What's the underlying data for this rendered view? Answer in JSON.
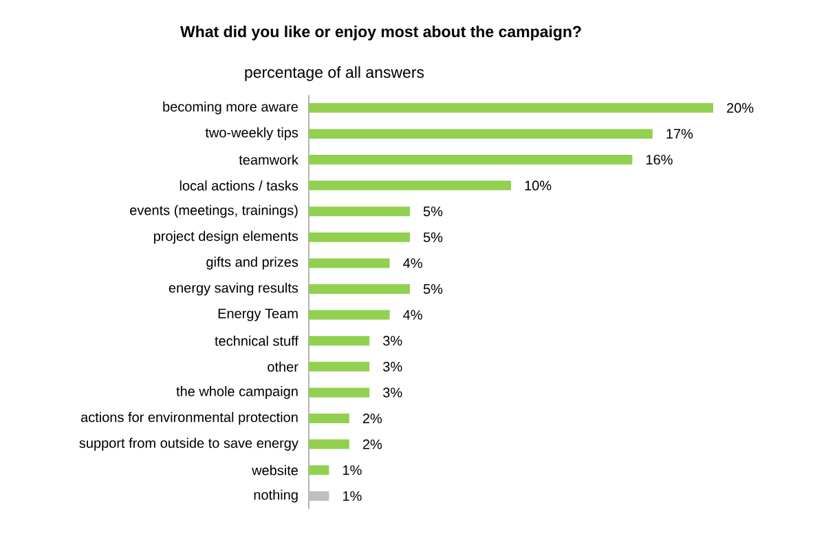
{
  "chart_data": {
    "type": "bar",
    "orientation": "horizontal",
    "title": "What did you like or enjoy most about the campaign?",
    "subtitle": "percentage of all answers",
    "categories": [
      "becoming more aware",
      "two-weekly tips",
      "teamwork",
      "local actions / tasks",
      "events (meetings, trainings)",
      "project design elements",
      "gifts and prizes",
      "energy saving results",
      "Energy Team",
      "technical stuff",
      "other",
      "the whole campaign",
      "actions for environmental protection",
      "support from outside to save energy",
      "website",
      "nothing"
    ],
    "values": [
      20,
      17,
      16,
      10,
      5,
      5,
      4,
      5,
      4,
      3,
      3,
      3,
      2,
      2,
      1,
      1
    ],
    "value_labels": [
      "20%",
      "17%",
      "16%",
      "10%",
      "5%",
      "5%",
      "4%",
      "5%",
      "4%",
      "3%",
      "3%",
      "3%",
      "2%",
      "2%",
      "1%",
      "1%"
    ],
    "colors": [
      "#92d050",
      "#92d050",
      "#92d050",
      "#92d050",
      "#92d050",
      "#92d050",
      "#92d050",
      "#92d050",
      "#92d050",
      "#92d050",
      "#92d050",
      "#92d050",
      "#92d050",
      "#92d050",
      "#92d050",
      "#bfbfbf"
    ]
  }
}
